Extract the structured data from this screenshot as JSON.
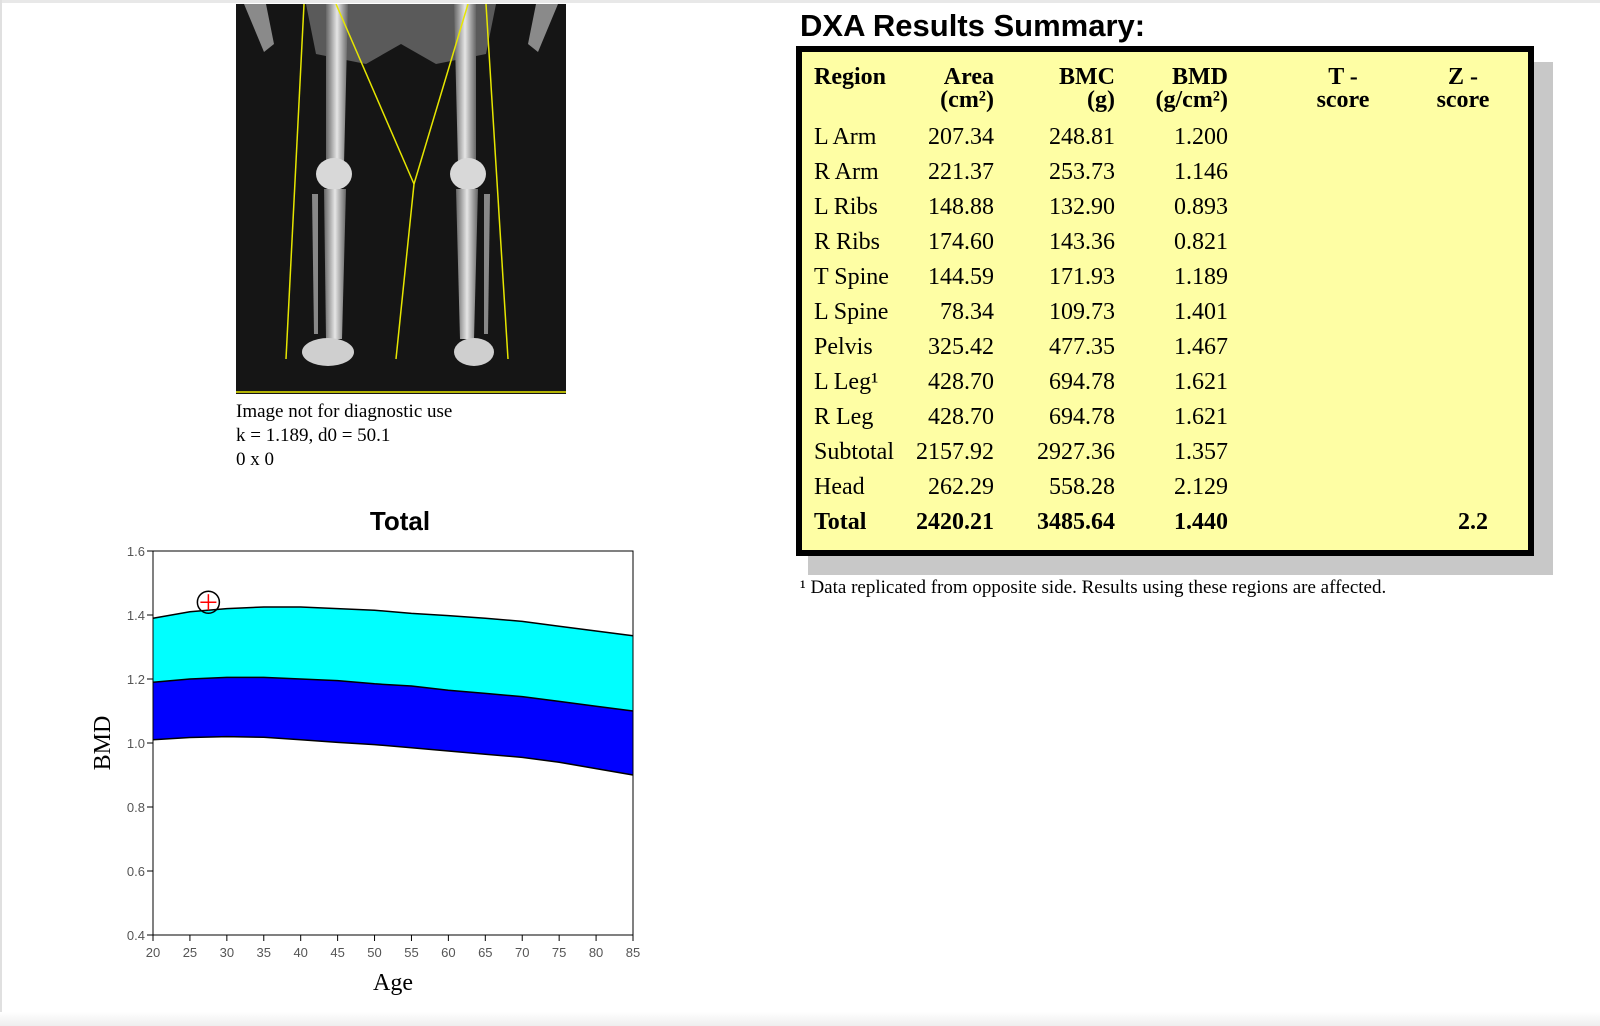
{
  "scan": {
    "note": "Image not for diagnostic use",
    "params": "k = 1.189, d0 = 50.1",
    "dims": "0 x 0"
  },
  "summary": {
    "title": "DXA Results Summary:",
    "headers": {
      "region": "Region",
      "area_1": "Area",
      "area_2": "(cm²)",
      "bmc_1": "BMC",
      "bmc_2": "(g)",
      "bmd_1": "BMD",
      "bmd_2": "(g/cm²)",
      "t_1": "T -",
      "t_2": "score",
      "z_1": "Z -",
      "z_2": "score"
    },
    "rows": [
      {
        "region": "L Arm",
        "area": "207.34",
        "bmc": "248.81",
        "bmd": "1.200",
        "t": "",
        "z": ""
      },
      {
        "region": "R Arm",
        "area": "221.37",
        "bmc": "253.73",
        "bmd": "1.146",
        "t": "",
        "z": ""
      },
      {
        "region": "L Ribs",
        "area": "148.88",
        "bmc": "132.90",
        "bmd": "0.893",
        "t": "",
        "z": ""
      },
      {
        "region": "R Ribs",
        "area": "174.60",
        "bmc": "143.36",
        "bmd": "0.821",
        "t": "",
        "z": ""
      },
      {
        "region": "T Spine",
        "area": "144.59",
        "bmc": "171.93",
        "bmd": "1.189",
        "t": "",
        "z": ""
      },
      {
        "region": "L Spine",
        "area": "78.34",
        "bmc": "109.73",
        "bmd": "1.401",
        "t": "",
        "z": ""
      },
      {
        "region": "Pelvis",
        "area": "325.42",
        "bmc": "477.35",
        "bmd": "1.467",
        "t": "",
        "z": ""
      },
      {
        "region": "L Leg¹",
        "area": "428.70",
        "bmc": "694.78",
        "bmd": "1.621",
        "t": "",
        "z": ""
      },
      {
        "region": "R Leg",
        "area": "428.70",
        "bmc": "694.78",
        "bmd": "1.621",
        "t": "",
        "z": ""
      },
      {
        "region": "Subtotal",
        "area": "2157.92",
        "bmc": "2927.36",
        "bmd": "1.357",
        "t": "",
        "z": ""
      },
      {
        "region": "Head",
        "area": "262.29",
        "bmc": "558.28",
        "bmd": "2.129",
        "t": "",
        "z": ""
      }
    ],
    "total": {
      "region": "Total",
      "area": "2420.21",
      "bmc": "3485.64",
      "bmd": "1.440",
      "t": "",
      "z": "2.2"
    },
    "footnote": "¹ Data replicated from opposite side. Results using these regions are affected."
  },
  "chart_data": {
    "type": "area",
    "title": "Total",
    "xlabel": "Age",
    "ylabel": "BMD",
    "xlim": [
      20,
      85
    ],
    "ylim": [
      0.4,
      1.6
    ],
    "x_ticks": [
      20,
      25,
      30,
      35,
      40,
      45,
      50,
      55,
      60,
      65,
      70,
      75,
      80,
      85
    ],
    "y_ticks": [
      0.4,
      0.6,
      0.8,
      1.0,
      1.2,
      1.4,
      1.6
    ],
    "y_tick_labels": [
      "0.4",
      "0.6",
      "0.8",
      "1.0",
      "1.2",
      "1.4",
      "1.6"
    ],
    "x": [
      20,
      25,
      30,
      35,
      40,
      45,
      50,
      55,
      60,
      65,
      70,
      75,
      80,
      85
    ],
    "series": [
      {
        "name": "upper",
        "values": [
          1.39,
          1.41,
          1.42,
          1.425,
          1.425,
          1.42,
          1.415,
          1.405,
          1.398,
          1.39,
          1.38,
          1.365,
          1.35,
          1.335
        ]
      },
      {
        "name": "mean",
        "values": [
          1.19,
          1.2,
          1.205,
          1.205,
          1.2,
          1.195,
          1.185,
          1.178,
          1.165,
          1.155,
          1.145,
          1.13,
          1.115,
          1.1
        ]
      },
      {
        "name": "lower",
        "values": [
          1.01,
          1.017,
          1.02,
          1.018,
          1.01,
          1.002,
          0.995,
          0.985,
          0.975,
          0.965,
          0.955,
          0.94,
          0.92,
          0.9
        ]
      }
    ],
    "patient_point": {
      "age": 27.5,
      "bmd": 1.44
    },
    "colors": {
      "upper_band": "#00ffff",
      "lower_band": "#0000ff",
      "marker": "#ff0000"
    }
  }
}
